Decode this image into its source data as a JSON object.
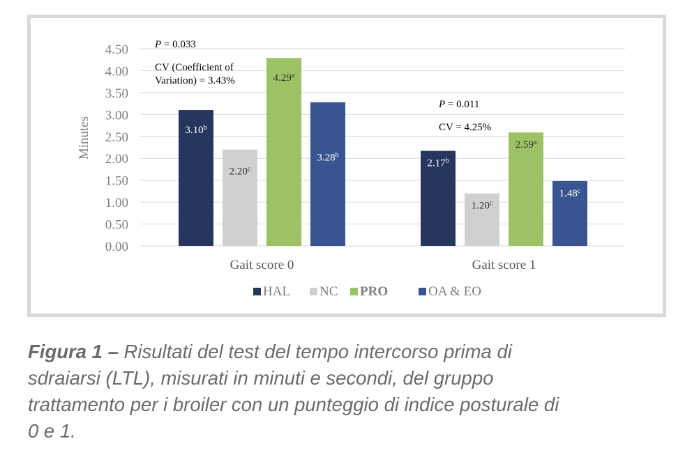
{
  "chart_data": {
    "type": "bar",
    "ylabel": "Minutes",
    "ylim": [
      0,
      4.5
    ],
    "yticks": [
      "0.00",
      "0.50",
      "1.00",
      "1.50",
      "2.00",
      "2.50",
      "3.00",
      "3.50",
      "4.00",
      "4.50"
    ],
    "grid": true,
    "legend_position": "bottom",
    "categories": [
      "Gait score 0",
      "Gait score 1"
    ],
    "series": [
      {
        "name": "HAL",
        "color": "#26365f",
        "values": [
          3.1,
          2.17
        ],
        "labels": [
          "3.10",
          "2.17"
        ],
        "sup": [
          "b",
          "b"
        ],
        "label_color": "#ffffff"
      },
      {
        "name": "NC",
        "color": "#d0d0d0",
        "values": [
          2.2,
          1.2
        ],
        "labels": [
          "2.20",
          "1.20"
        ],
        "sup": [
          "c",
          "c"
        ],
        "label_color": "#333333"
      },
      {
        "name": "PRO",
        "color": "#9dc165",
        "values": [
          4.29,
          2.59
        ],
        "labels": [
          "4.29",
          "2.59"
        ],
        "sup": [
          "a",
          "a"
        ],
        "label_color": "#333333"
      },
      {
        "name": "OA & EO",
        "color": "#385592",
        "values": [
          3.28,
          1.48
        ],
        "labels": [
          "3.28",
          "1.48"
        ],
        "sup": [
          "b",
          "c"
        ],
        "label_color": "#ffffff"
      }
    ],
    "annotations": {
      "g0_p_italic": "P",
      "g0_p_rest": " = 0.033",
      "g0_cv_line1": "CV (Coefficient of",
      "g0_cv_line2": "Variation) = 3.43%",
      "g1_p_italic": "P",
      "g1_p_rest": " = 0.011",
      "g1_cv": "CV = 4.25%"
    }
  },
  "caption": {
    "bold": "Figura 1 –",
    "line1": " Risultati del test del tempo intercorso prima di",
    "line2": "sdraiarsi (LTL), misurati in minuti e secondi, del gruppo",
    "line3": "trattamento per i broiler con un punteggio di indice posturale di",
    "line4": "0 e 1."
  }
}
